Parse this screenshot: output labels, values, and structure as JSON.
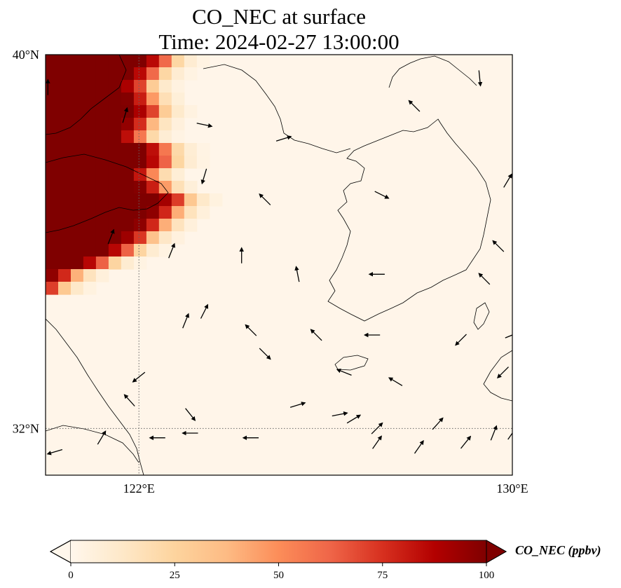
{
  "chart_data": {
    "type": "heatmap",
    "title": "CO_NEC at surface",
    "subtitle": "Time: 2024-02-27 13:00:00",
    "projection_extent": {
      "lon_min": 120.0,
      "lon_max": 130.0,
      "lat_min": 31.0,
      "lat_max": 40.0
    },
    "x_ticks": [
      {
        "value": 122,
        "label": "122°E"
      },
      {
        "value": 130,
        "label": "130°E"
      }
    ],
    "y_ticks": [
      {
        "value": 40,
        "label": "40°N"
      },
      {
        "value": 32,
        "label": "32°N"
      }
    ],
    "gridlines": {
      "lon": [
        122
      ],
      "lat": [
        32
      ],
      "style": "dotted"
    },
    "colorbar": {
      "label": "CO_NEC (ppbv)",
      "vmin": 0,
      "vmax": 100,
      "extend": "both",
      "colormap": "OrRd",
      "ticks": [
        0,
        25,
        50,
        75,
        100
      ],
      "color_stops": [
        "#fff7ec",
        "#fee8c8",
        "#fdd49e",
        "#fdbb84",
        "#fc8d59",
        "#ef6548",
        "#d7301f",
        "#b30000",
        "#7f0000"
      ]
    },
    "high_concentration_zone": {
      "description_values_ppbv": "about 100 along the western edge",
      "east_boundary": [
        {
          "lat": 40.0,
          "lon": 122.4
        },
        {
          "lat": 39.5,
          "lon": 121.9
        },
        {
          "lat": 38.9,
          "lon": 122.2
        },
        {
          "lat": 38.4,
          "lon": 121.8
        },
        {
          "lat": 38.0,
          "lon": 122.6
        },
        {
          "lat": 37.5,
          "lon": 122.0
        },
        {
          "lat": 37.0,
          "lon": 122.8
        },
        {
          "lat": 36.5,
          "lon": 122.3
        },
        {
          "lat": 36.0,
          "lon": 121.7
        },
        {
          "lat": 35.6,
          "lon": 120.9
        },
        {
          "lat": 35.3,
          "lon": 120.1
        },
        {
          "lat": 35.0,
          "lon": 120.0
        }
      ]
    },
    "wind_vectors": [
      {
        "lon": 120.05,
        "lat": 39.3,
        "u": 0,
        "v": 1
      },
      {
        "lon": 121.7,
        "lat": 38.7,
        "u": 0.3,
        "v": 1
      },
      {
        "lon": 123.4,
        "lat": 38.5,
        "u": 1,
        "v": -0.2
      },
      {
        "lon": 125.1,
        "lat": 38.2,
        "u": 1,
        "v": 0.3
      },
      {
        "lon": 127.9,
        "lat": 38.9,
        "u": -1,
        "v": 1
      },
      {
        "lon": 129.3,
        "lat": 39.5,
        "u": 0.1,
        "v": -1
      },
      {
        "lon": 123.4,
        "lat": 37.4,
        "u": -0.3,
        "v": -1
      },
      {
        "lon": 124.7,
        "lat": 36.9,
        "u": -1,
        "v": 1
      },
      {
        "lon": 127.2,
        "lat": 37.0,
        "u": 1,
        "v": -0.5
      },
      {
        "lon": 129.9,
        "lat": 37.3,
        "u": 0.6,
        "v": 1
      },
      {
        "lon": 121.4,
        "lat": 36.1,
        "u": 0.4,
        "v": 1
      },
      {
        "lon": 122.7,
        "lat": 35.8,
        "u": 0.4,
        "v": 1
      },
      {
        "lon": 124.2,
        "lat": 35.7,
        "u": 0,
        "v": 1
      },
      {
        "lon": 125.4,
        "lat": 35.3,
        "u": -0.2,
        "v": 1
      },
      {
        "lon": 127.1,
        "lat": 35.3,
        "u": -1,
        "v": 0
      },
      {
        "lon": 129.4,
        "lat": 35.2,
        "u": -1,
        "v": 1
      },
      {
        "lon": 123.0,
        "lat": 34.3,
        "u": 0.4,
        "v": 1
      },
      {
        "lon": 123.4,
        "lat": 34.5,
        "u": 0.5,
        "v": 1
      },
      {
        "lon": 124.4,
        "lat": 34.1,
        "u": -1,
        "v": 1
      },
      {
        "lon": 125.8,
        "lat": 34.0,
        "u": -1,
        "v": 1
      },
      {
        "lon": 127.0,
        "lat": 34.0,
        "u": -1,
        "v": 0
      },
      {
        "lon": 128.9,
        "lat": 33.9,
        "u": -1,
        "v": -1
      },
      {
        "lon": 129.8,
        "lat": 33.2,
        "u": -1,
        "v": -1
      },
      {
        "lon": 124.7,
        "lat": 33.6,
        "u": 1,
        "v": -1
      },
      {
        "lon": 122.0,
        "lat": 33.1,
        "u": -1,
        "v": -0.8
      },
      {
        "lon": 126.4,
        "lat": 33.2,
        "u": -1,
        "v": 0.4
      },
      {
        "lon": 127.5,
        "lat": 33.0,
        "u": -1,
        "v": 0.6
      },
      {
        "lon": 121.8,
        "lat": 32.6,
        "u": -0.9,
        "v": 1
      },
      {
        "lon": 123.1,
        "lat": 32.3,
        "u": 0.8,
        "v": -1
      },
      {
        "lon": 125.4,
        "lat": 32.5,
        "u": 1,
        "v": 0.3
      },
      {
        "lon": 126.6,
        "lat": 32.2,
        "u": 1,
        "v": 0.6
      },
      {
        "lon": 127.1,
        "lat": 32.0,
        "u": 1,
        "v": 1
      },
      {
        "lon": 128.4,
        "lat": 32.1,
        "u": 0.9,
        "v": 1
      },
      {
        "lon": 129.0,
        "lat": 31.7,
        "u": 0.8,
        "v": 1
      },
      {
        "lon": 129.6,
        "lat": 31.9,
        "u": 0.4,
        "v": 1
      },
      {
        "lon": 130.0,
        "lat": 31.9,
        "u": 0.7,
        "v": 1
      },
      {
        "lon": 120.2,
        "lat": 31.5,
        "u": -1,
        "v": -0.3
      },
      {
        "lon": 121.2,
        "lat": 31.8,
        "u": 0.6,
        "v": 1
      },
      {
        "lon": 122.4,
        "lat": 31.8,
        "u": -1,
        "v": 0
      },
      {
        "lon": 123.1,
        "lat": 31.9,
        "u": -1,
        "v": 0
      },
      {
        "lon": 124.4,
        "lat": 31.8,
        "u": -1,
        "v": 0
      },
      {
        "lon": 126.3,
        "lat": 32.3,
        "u": 1,
        "v": 0.2
      },
      {
        "lon": 127.1,
        "lat": 31.7,
        "u": 0.7,
        "v": 1
      },
      {
        "lon": 128.0,
        "lat": 31.6,
        "u": 0.7,
        "v": 1
      },
      {
        "lon": 130.0,
        "lat": 34.0,
        "u": 1,
        "v": 0.4
      },
      {
        "lon": 129.7,
        "lat": 35.9,
        "u": -1,
        "v": 1
      }
    ]
  }
}
